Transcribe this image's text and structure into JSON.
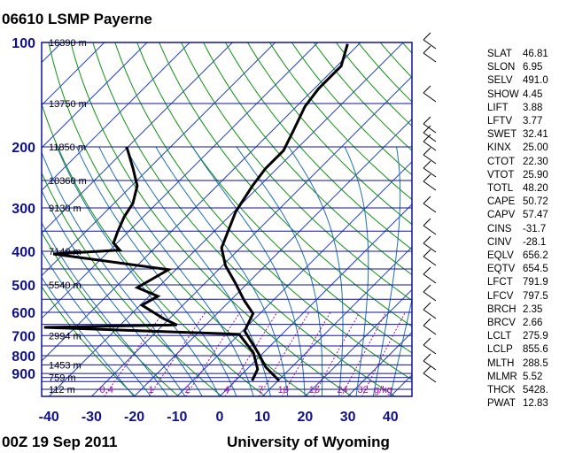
{
  "header": {
    "title": "06610 LSMP Payerne"
  },
  "footer": {
    "time": "00Z 19 Sep 2011",
    "source": "University of Wyoming"
  },
  "colors": {
    "isobar": "#1010a0",
    "isotherm": "#2040c0",
    "dry_adiabat": "#109010",
    "moist_adiabat": "#2070b0",
    "mixing_ratio": "#a010a0",
    "profile": "#000000",
    "axis_label": "#10108a"
  },
  "chart_data": {
    "type": "skew-t",
    "x_axis": {
      "ticks": [
        -40,
        -30,
        -20,
        -10,
        0,
        10,
        20,
        30,
        40
      ],
      "range": [
        -40,
        45
      ]
    },
    "y_axis": {
      "scale": "log",
      "ticks": [
        100,
        200,
        300,
        400,
        500,
        600,
        700,
        800,
        900
      ],
      "range": [
        1050,
        100
      ]
    },
    "height_labels": [
      {
        "p": 100,
        "label": "16390 m"
      },
      {
        "p": 150,
        "label": "13750 m"
      },
      {
        "p": 200,
        "label": "11850 m"
      },
      {
        "p": 250,
        "label": "10360 m"
      },
      {
        "p": 300,
        "label": "9130 m"
      },
      {
        "p": 400,
        "label": "7140 m"
      },
      {
        "p": 500,
        "label": "5540 m"
      },
      {
        "p": 700,
        "label": "2994 m"
      },
      {
        "p": 850,
        "label": "1453 m"
      },
      {
        "p": 925,
        "label": "759 m"
      },
      {
        "p": 1000,
        "label": "112 m"
      }
    ],
    "mixing_ratio_labels": [
      "0.4",
      "1",
      "2",
      "4",
      "7",
      "10",
      "16",
      "24",
      "32"
    ],
    "mixing_ratio_unit": "g/kg",
    "temperature": [
      {
        "p": 101,
        "t": -52.7
      },
      {
        "p": 117,
        "t": -49
      },
      {
        "p": 136,
        "t": -49
      },
      {
        "p": 153,
        "t": -48
      },
      {
        "p": 182,
        "t": -44.8
      },
      {
        "p": 205,
        "t": -42.7
      },
      {
        "p": 231,
        "t": -42.7
      },
      {
        "p": 259,
        "t": -41.7
      },
      {
        "p": 307,
        "t": -39.6
      },
      {
        "p": 391,
        "t": -34.4
      },
      {
        "p": 440,
        "t": -29.3
      },
      {
        "p": 493,
        "t": -23
      },
      {
        "p": 554,
        "t": -16.8
      },
      {
        "p": 605,
        "t": -11.6
      },
      {
        "p": 679,
        "t": -9.5
      },
      {
        "p": 785,
        "t": -1.2
      },
      {
        "p": 863,
        "t": 3.9
      },
      {
        "p": 944,
        "t": 10.2
      }
    ],
    "dewpoint": [
      {
        "p": 200,
        "t": -80.3
      },
      {
        "p": 230,
        "t": -73.9
      },
      {
        "p": 259,
        "t": -68.7
      },
      {
        "p": 291,
        "t": -65.6
      },
      {
        "p": 318,
        "t": -64.5
      },
      {
        "p": 353,
        "t": -62.4
      },
      {
        "p": 379,
        "t": -60.8
      },
      {
        "p": 397,
        "t": -57.7
      },
      {
        "p": 407,
        "t": -72.4
      },
      {
        "p": 452,
        "t": -41.7
      },
      {
        "p": 509,
        "t": -44.8
      },
      {
        "p": 539,
        "t": -38
      },
      {
        "p": 572,
        "t": -39.6
      },
      {
        "p": 626,
        "t": -31.3
      },
      {
        "p": 652,
        "t": -26.8
      },
      {
        "p": 663,
        "t": -57.3
      },
      {
        "p": 694,
        "t": -10
      },
      {
        "p": 785,
        "t": -2.3
      },
      {
        "p": 875,
        "t": 2.5
      },
      {
        "p": 944,
        "t": 3.9
      }
    ]
  },
  "indices": [
    {
      "k": "SLAT",
      "v": "46.81"
    },
    {
      "k": "SLON",
      "v": "6.95"
    },
    {
      "k": "SELV",
      "v": "491.0"
    },
    {
      "k": "SHOW",
      "v": "4.45"
    },
    {
      "k": "LIFT",
      "v": "3.88"
    },
    {
      "k": "LFTV",
      "v": "3.77"
    },
    {
      "k": "SWET",
      "v": "32.41"
    },
    {
      "k": "KINX",
      "v": "25.00"
    },
    {
      "k": "CTOT",
      "v": "22.30"
    },
    {
      "k": "VTOT",
      "v": "25.90"
    },
    {
      "k": "TOTL",
      "v": "48.20"
    },
    {
      "k": "CAPE",
      "v": "50.72"
    },
    {
      "k": "CAPV",
      "v": "57.47"
    },
    {
      "k": "CINS",
      "v": "-31.7"
    },
    {
      "k": "CINV",
      "v": "-28.1"
    },
    {
      "k": "EQLV",
      "v": "656.2"
    },
    {
      "k": "EQTV",
      "v": "654.5"
    },
    {
      "k": "LFCT",
      "v": "791.9"
    },
    {
      "k": "LFCV",
      "v": "797.5"
    },
    {
      "k": "BRCH",
      "v": "2.35"
    },
    {
      "k": "BRCV",
      "v": "2.66"
    },
    {
      "k": "LCLT",
      "v": "275.9"
    },
    {
      "k": "LCLP",
      "v": "855.6"
    },
    {
      "k": "MLTH",
      "v": "288.5"
    },
    {
      "k": "MLMR",
      "v": "5.52"
    },
    {
      "k": "THCK",
      "v": "5428."
    },
    {
      "k": "PWAT",
      "v": "12.83"
    }
  ]
}
